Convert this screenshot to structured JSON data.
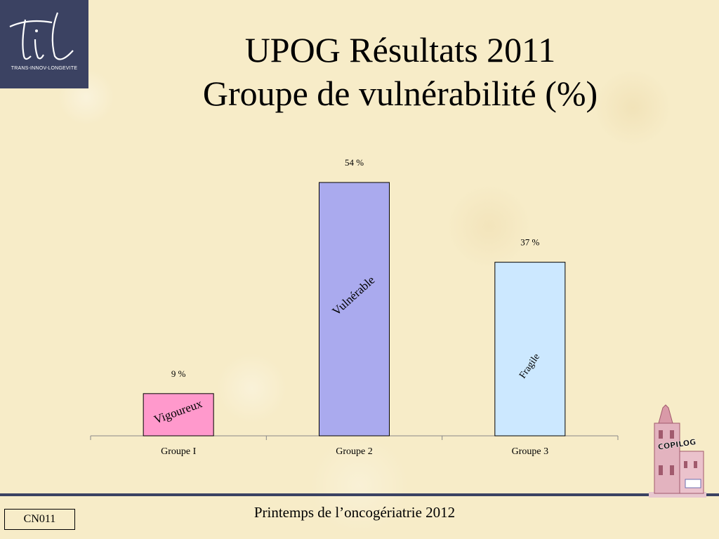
{
  "logo": {
    "caption": "TRANS-INNOV-LONGEVITE",
    "letters": "til"
  },
  "title": {
    "line1": "UPOG Résultats 2011",
    "line2": "Groupe de vulnérabilité (%)"
  },
  "chart_data": {
    "type": "bar",
    "categories": [
      "Groupe I",
      "Groupe 2",
      "Groupe 3"
    ],
    "values": [
      9,
      54,
      37
    ],
    "value_labels": [
      "9 %",
      "54 %",
      "37 %"
    ],
    "bar_inner_labels": [
      "Vigoureux",
      "Vulnérable",
      "Fragile"
    ],
    "colors": [
      "#ff99cc",
      "#aaaaee",
      "#cce8ff"
    ],
    "ylim": [
      0,
      60
    ],
    "title": "",
    "xlabel": "",
    "ylabel": "",
    "grid": false,
    "legend": "none"
  },
  "footer": {
    "text": "Printemps de l’oncogériatrie 2012",
    "code": "CN011"
  },
  "copilog": {
    "label": "COPILOG"
  }
}
